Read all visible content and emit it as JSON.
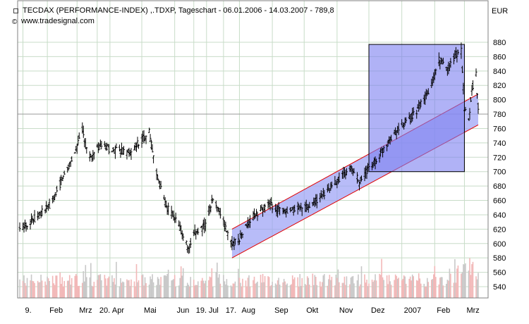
{
  "header": {
    "title": "TECDAX (PERFORMANCE-INDEX) ,.TDXP, Tageschart - 06.01.2006 - 14.03.2007 - 789,8",
    "source": "www.tradesignal.com",
    "copyright_icon": "copyright-icon",
    "title_icon": "chart-box-icon"
  },
  "colors": {
    "candle": "#000000",
    "volume_up": "#f2b8b8",
    "volume_down": "#c8c8c8",
    "channel_fill": "#9aa0f5",
    "channel_line": "#e00000",
    "box_fill": "#7b7ff0",
    "box_border": "#000000",
    "grid": "#c8dcc8"
  },
  "chart_data": {
    "type": "ohlc",
    "unit": "EUR",
    "ylim": [
      520,
      900
    ],
    "yticks": [
      540,
      560,
      580,
      600,
      620,
      640,
      660,
      680,
      700,
      720,
      740,
      760,
      780,
      800,
      820,
      840,
      860,
      880
    ],
    "x_range": [
      "2006-01-06",
      "2007-03-14"
    ],
    "xtick_labels": [
      {
        "label": "9.",
        "date": "2006-01-09"
      },
      {
        "label": "Feb",
        "date": "2006-02-01"
      },
      {
        "label": "Mrz",
        "date": "2006-03-01"
      },
      {
        "label": "20.",
        "date": "2006-03-20"
      },
      {
        "label": "Apr",
        "date": "2006-04-01"
      },
      {
        "label": "Mai",
        "date": "2006-05-01"
      },
      {
        "label": "Jun",
        "date": "2006-06-01"
      },
      {
        "label": "19.",
        "date": "2006-06-19"
      },
      {
        "label": "Jul",
        "date": "2006-07-01"
      },
      {
        "label": "17.",
        "date": "2006-07-17"
      },
      {
        "label": "Aug",
        "date": "2006-08-01"
      },
      {
        "label": "Sep",
        "date": "2006-09-01"
      },
      {
        "label": "Okt",
        "date": "2006-10-01"
      },
      {
        "label": "Nov",
        "date": "2006-11-01"
      },
      {
        "label": "Dez",
        "date": "2006-12-01"
      },
      {
        "label": "2007",
        "date": "2007-01-01"
      },
      {
        "label": "Feb",
        "date": "2007-02-01"
      },
      {
        "label": "Mrz",
        "date": "2007-03-01"
      }
    ],
    "price_path": [
      [
        "2006-01-06",
        620
      ],
      [
        "2006-01-20",
        635
      ],
      [
        "2006-02-05",
        655
      ],
      [
        "2006-02-15",
        690
      ],
      [
        "2006-02-28",
        730
      ],
      [
        "2006-03-06",
        760
      ],
      [
        "2006-03-10",
        730
      ],
      [
        "2006-03-15",
        720
      ],
      [
        "2006-03-22",
        735
      ],
      [
        "2006-04-05",
        730
      ],
      [
        "2006-04-15",
        728
      ],
      [
        "2006-04-20",
        725
      ],
      [
        "2006-04-28",
        740
      ],
      [
        "2006-05-08",
        755
      ],
      [
        "2006-05-12",
        720
      ],
      [
        "2006-05-18",
        680
      ],
      [
        "2006-05-25",
        650
      ],
      [
        "2006-06-01",
        635
      ],
      [
        "2006-06-08",
        615
      ],
      [
        "2006-06-14",
        590
      ],
      [
        "2006-06-20",
        615
      ],
      [
        "2006-06-30",
        625
      ],
      [
        "2006-07-06",
        660
      ],
      [
        "2006-07-12",
        650
      ],
      [
        "2006-07-17",
        630
      ],
      [
        "2006-07-24",
        600
      ],
      [
        "2006-07-31",
        605
      ],
      [
        "2006-08-08",
        625
      ],
      [
        "2006-08-16",
        640
      ],
      [
        "2006-08-28",
        655
      ],
      [
        "2006-09-05",
        648
      ],
      [
        "2006-09-15",
        642
      ],
      [
        "2006-09-25",
        650
      ],
      [
        "2006-10-05",
        650
      ],
      [
        "2006-10-15",
        663
      ],
      [
        "2006-10-25",
        676
      ],
      [
        "2006-11-06",
        695
      ],
      [
        "2006-11-15",
        705
      ],
      [
        "2006-11-22",
        685
      ],
      [
        "2006-12-01",
        705
      ],
      [
        "2006-12-10",
        720
      ],
      [
        "2006-12-20",
        745
      ],
      [
        "2006-12-29",
        760
      ],
      [
        "2007-01-10",
        775
      ],
      [
        "2007-01-20",
        795
      ],
      [
        "2007-01-28",
        815
      ],
      [
        "2007-02-05",
        855
      ],
      [
        "2007-02-14",
        845
      ],
      [
        "2007-02-20",
        862
      ],
      [
        "2007-02-26",
        868
      ],
      [
        "2007-03-01",
        790
      ],
      [
        "2007-03-05",
        770
      ],
      [
        "2007-03-08",
        815
      ],
      [
        "2007-03-12",
        835
      ],
      [
        "2007-03-14",
        790
      ]
    ],
    "channel": {
      "upper": [
        [
          "2006-07-25",
          620
        ],
        [
          "2007-03-14",
          808
        ]
      ],
      "lower": [
        [
          "2006-07-25",
          580
        ],
        [
          "2007-03-14",
          765
        ]
      ]
    },
    "box": {
      "x": [
        "2006-12-01",
        "2007-03-01"
      ],
      "y": [
        700,
        877
      ]
    },
    "horizontal_line": 780
  }
}
